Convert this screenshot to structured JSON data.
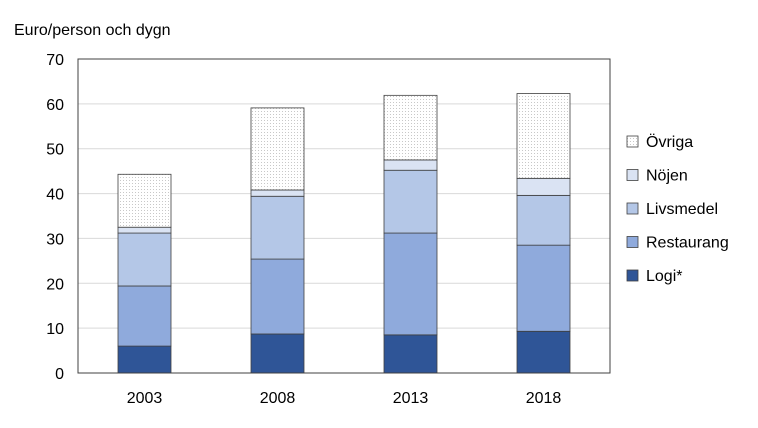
{
  "chart_data": {
    "type": "bar",
    "stacked": true,
    "title": "",
    "xlabel": "",
    "ylabel": "Euro/person och dygn",
    "ylim": [
      0,
      70
    ],
    "yticks": [
      0,
      10,
      20,
      30,
      40,
      50,
      60,
      70
    ],
    "grid": true,
    "legend_position": "right",
    "categories": [
      "2003",
      "2008",
      "2013",
      "2018"
    ],
    "series": [
      {
        "name": "Logi*",
        "color": "#2f5597",
        "pattern": "solid",
        "values": [
          6.0,
          8.7,
          8.5,
          9.3
        ]
      },
      {
        "name": "Restaurang",
        "color": "#8faadc",
        "pattern": "solid",
        "values": [
          13.4,
          16.7,
          22.7,
          19.2
        ]
      },
      {
        "name": "Livsmedel",
        "color": "#b4c7e7",
        "pattern": "solid",
        "values": [
          11.8,
          14.0,
          14.0,
          11.1
        ]
      },
      {
        "name": "Nöjen",
        "color": "#dae3f3",
        "pattern": "solid",
        "values": [
          1.3,
          1.4,
          2.3,
          3.8
        ]
      },
      {
        "name": "Övriga",
        "color": "#ffffff",
        "pattern": "dotted",
        "values": [
          11.8,
          18.3,
          14.4,
          18.9
        ]
      }
    ]
  }
}
